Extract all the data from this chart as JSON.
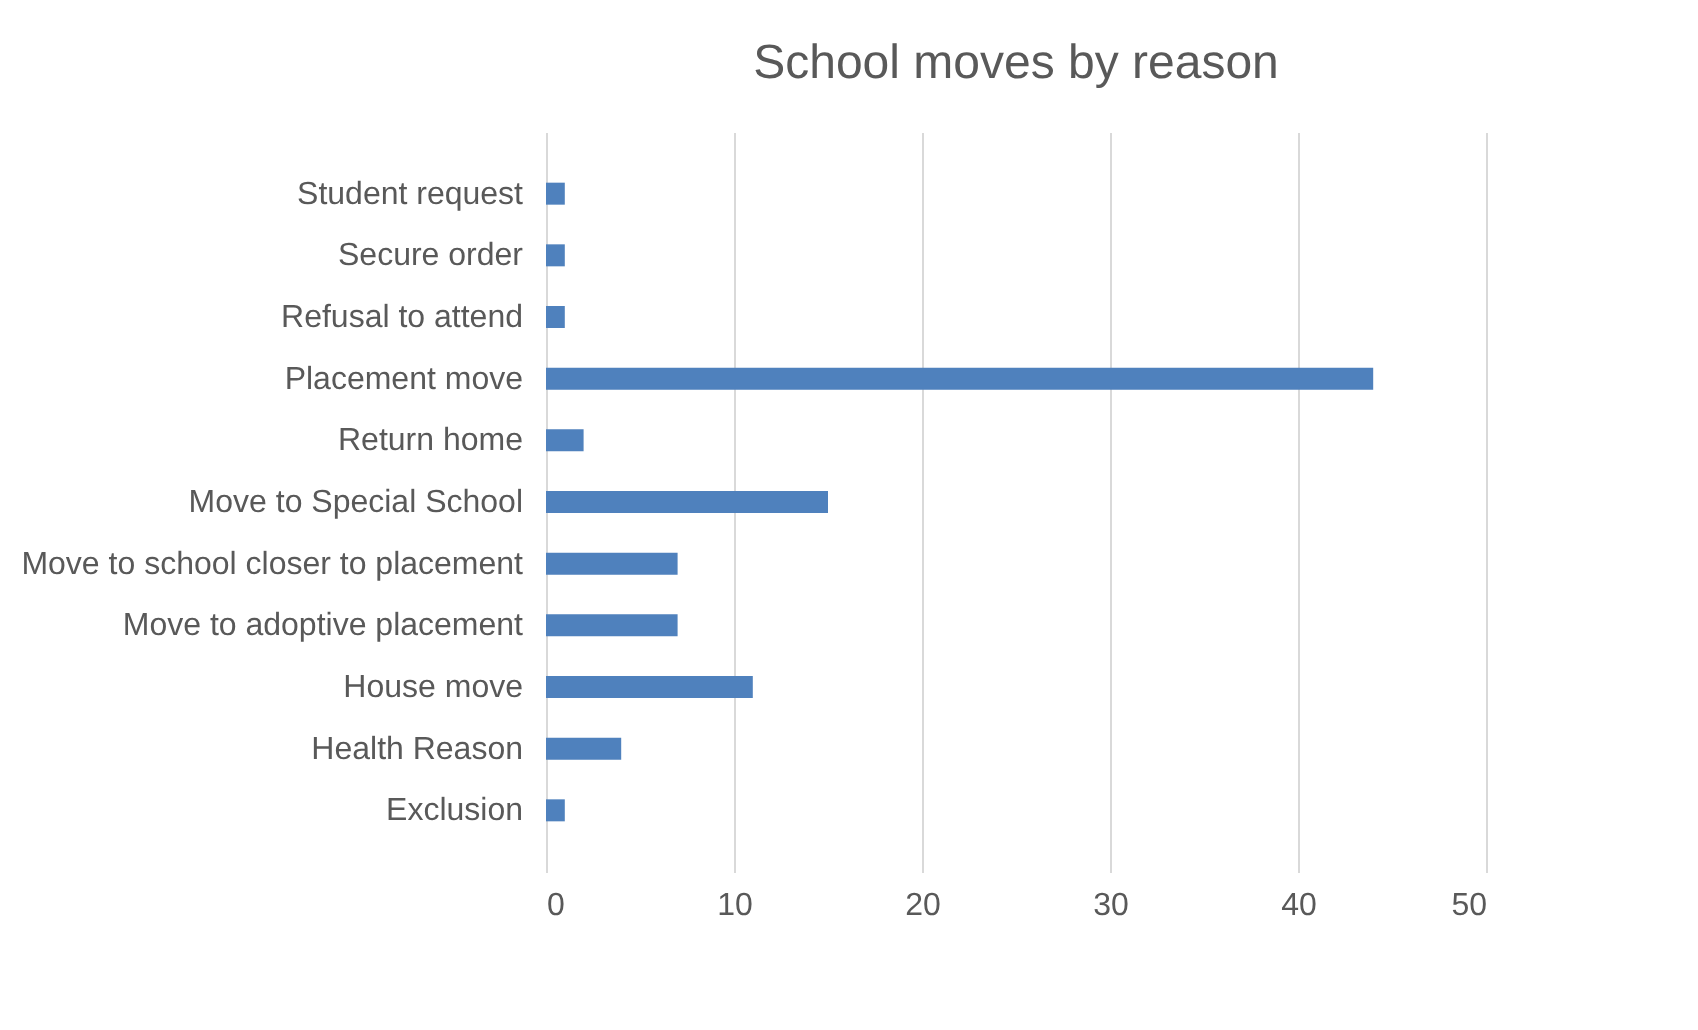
{
  "chart_data": {
    "type": "bar",
    "title": "School moves by reason",
    "orientation": "horizontal",
    "categories": [
      "Student request",
      "Secure order",
      "Refusal to attend",
      "Placement move",
      "Return home",
      "Move to Special School",
      "Move to school closer to placement",
      "Move to adoptive placement",
      "House move",
      "Health Reason",
      "Exclusion"
    ],
    "values": [
      1,
      1,
      1,
      44,
      2,
      15,
      7,
      7,
      11,
      4,
      1
    ],
    "color": "#4f81bd",
    "xlim": [
      0,
      50
    ],
    "xticks": [
      0,
      10,
      20,
      30,
      40,
      50
    ],
    "grid": "x"
  }
}
